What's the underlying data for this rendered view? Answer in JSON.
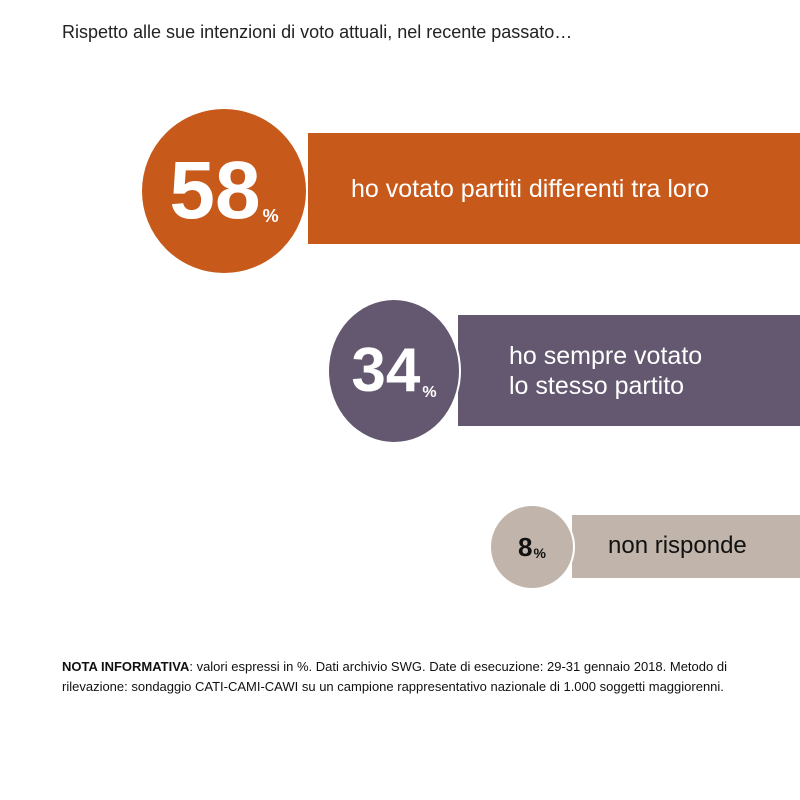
{
  "question": "Rispetto alle sue intenzioni di voto attuali, nel recente passato…",
  "chart_data": {
    "type": "bar",
    "categories": [
      "ho votato partiti differenti tra loro",
      "ho sempre votato lo stesso partito",
      "non risponde"
    ],
    "values": [
      58,
      34,
      8
    ],
    "unit": "%",
    "items": [
      {
        "value": "58",
        "unit": "%",
        "label_lines": [
          "ho votato partiti differenti tra loro"
        ],
        "color": "#c75a1a"
      },
      {
        "value": "34",
        "unit": "%",
        "label_lines": [
          "ho sempre votato",
          "lo stesso partito"
        ],
        "color": "#635870"
      },
      {
        "value": "8",
        "unit": "%",
        "label_lines": [
          "non risponde"
        ],
        "color": "#c1b5ab"
      }
    ]
  },
  "note": {
    "label": "NOTA INFORMATIVA",
    "text": ": valori espressi in %. Dati archivio SWG. Date di esecuzione: 29-31 gennaio 2018. Metodo di rilevazione: sondaggio CATI-CAMI-CAWI su un campione rappresentativo nazionale di 1.000 soggetti maggiorenni."
  }
}
